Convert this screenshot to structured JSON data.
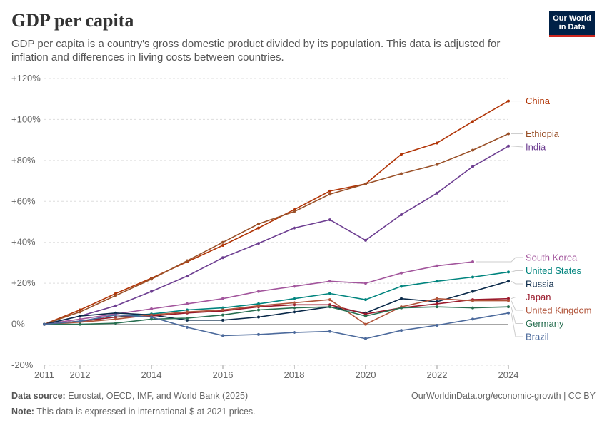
{
  "header": {
    "title": "GDP per capita",
    "subtitle": "GDP per capita is a country's gross domestic product divided by its population. This data is adjusted for inflation and differences in living costs between countries.",
    "logo_line1": "Our World",
    "logo_line2": "in Data"
  },
  "footer": {
    "source_label": "Data source:",
    "source_text": "Eurostat, OECD, IMF, and World Bank (2025)",
    "note_label": "Note:",
    "note_text": "This data is expressed in international-$ at 2021 prices.",
    "link_text": "OurWorldinData.org/economic-growth | CC BY"
  },
  "chart_data": {
    "type": "line",
    "title": "GDP per capita",
    "xlabel": "",
    "ylabel": "",
    "xlim": [
      2011,
      2024
    ],
    "ylim": [
      -20,
      120
    ],
    "x_ticks": [
      2011,
      2012,
      2014,
      2016,
      2018,
      2020,
      2022,
      2024
    ],
    "y_ticks": [
      -20,
      0,
      20,
      40,
      60,
      80,
      100,
      120
    ],
    "y_tick_labels": [
      "-20%",
      "0%",
      "+20%",
      "+40%",
      "+60%",
      "+80%",
      "+100%",
      "+120%"
    ],
    "x": [
      2011,
      2012,
      2013,
      2014,
      2015,
      2016,
      2017,
      2018,
      2019,
      2020,
      2021,
      2022,
      2023,
      2024
    ],
    "series": [
      {
        "name": "China",
        "color": "#b13507",
        "values": [
          0,
          7,
          15,
          22.5,
          30.5,
          38.5,
          47,
          56,
          65,
          68.5,
          83,
          88.5,
          99,
          109
        ]
      },
      {
        "name": "Ethiopia",
        "color": "#9a5129",
        "values": [
          0,
          6,
          14,
          22,
          31,
          40,
          49,
          55,
          63.5,
          68.5,
          73.5,
          78,
          85,
          93
        ]
      },
      {
        "name": "India",
        "color": "#6d3e91",
        "values": [
          0,
          4,
          9,
          16,
          23.5,
          32.5,
          39.5,
          47,
          51,
          41,
          53.5,
          64,
          77,
          87
        ]
      },
      {
        "name": "South Korea",
        "color": "#a2559c",
        "values": [
          0,
          2.5,
          5,
          7.5,
          10,
          12.5,
          16,
          18.5,
          21,
          20,
          25,
          28.5,
          30.5,
          null
        ]
      },
      {
        "name": "United States",
        "color": "#00847e",
        "values": [
          0,
          1.5,
          3.5,
          5,
          7,
          8,
          10,
          12.5,
          15,
          12,
          18.5,
          21,
          23,
          25.5
        ]
      },
      {
        "name": "Russia",
        "color": "#0b2a4a",
        "values": [
          0,
          4,
          5.5,
          4.5,
          2,
          2,
          3.5,
          6,
          8.5,
          5.5,
          12.5,
          11,
          16,
          21
        ]
      },
      {
        "name": "Japan",
        "color": "#9a1a2c",
        "values": [
          0,
          1.5,
          3.5,
          4,
          5.5,
          6.5,
          8.5,
          9.5,
          9.5,
          5,
          8,
          10,
          12,
          12.5
        ]
      },
      {
        "name": "United Kingdom",
        "color": "#b1543a",
        "values": [
          0,
          1,
          2.5,
          4.5,
          6,
          7,
          9,
          10.5,
          12,
          0,
          8.5,
          12.5,
          11.5,
          11.5
        ]
      },
      {
        "name": "Germany",
        "color": "#286f51",
        "values": [
          0,
          0,
          0.5,
          2.5,
          3,
          4.5,
          7,
          8,
          8.5,
          4,
          8,
          8.5,
          8,
          8.5
        ]
      },
      {
        "name": "Brazil",
        "color": "#4c6a9c",
        "values": [
          0,
          1.5,
          4.5,
          3.5,
          -1.5,
          -5.5,
          -5,
          -4,
          -3.5,
          -7,
          -3,
          -0.5,
          2.5,
          5.5
        ]
      }
    ],
    "label_order": [
      "China",
      "Ethiopia",
      "India",
      "South Korea",
      "United States",
      "Russia",
      "Japan",
      "United Kingdom",
      "Germany",
      "Brazil"
    ]
  }
}
